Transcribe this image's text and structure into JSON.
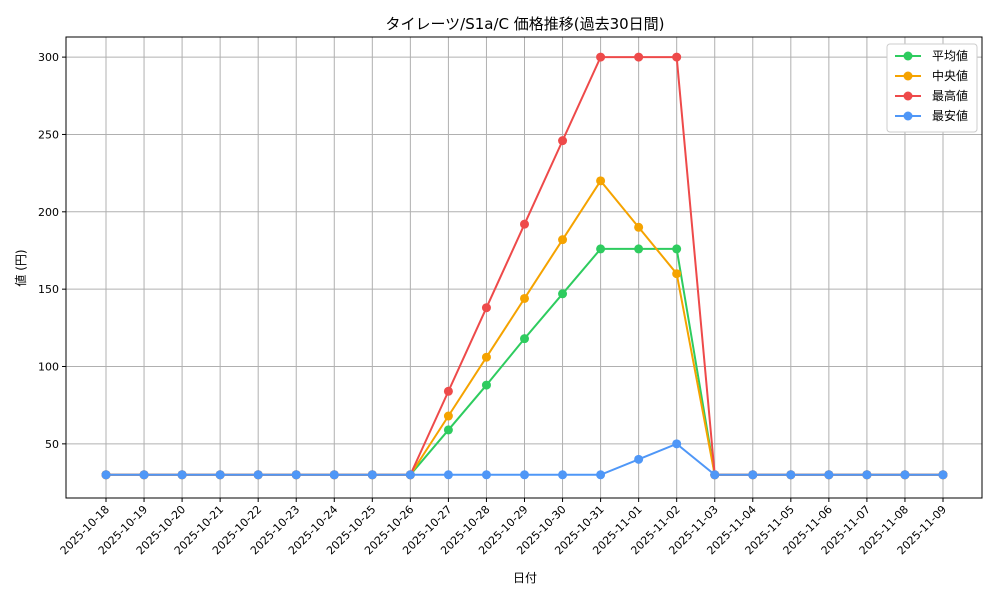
{
  "chart_data": {
    "type": "line",
    "title": "タイレーツ/S1a/C 価格推移(過去30日間)",
    "xlabel": "日付",
    "ylabel": "値 (円)",
    "ylim": [
      15,
      313
    ],
    "yticks": [
      50,
      100,
      150,
      200,
      250,
      300
    ],
    "grid": true,
    "legend_position": "top-right",
    "categories": [
      "2025-10-18",
      "2025-10-19",
      "2025-10-20",
      "2025-10-21",
      "2025-10-22",
      "2025-10-23",
      "2025-10-24",
      "2025-10-25",
      "2025-10-26",
      "2025-10-27",
      "2025-10-28",
      "2025-10-29",
      "2025-10-30",
      "2025-10-31",
      "2025-11-01",
      "2025-11-02",
      "2025-11-03",
      "2025-11-04",
      "2025-11-05",
      "2025-11-06",
      "2025-11-07",
      "2025-11-08",
      "2025-11-09"
    ],
    "series": [
      {
        "name": "平均値",
        "color": "#2ecc5f",
        "values": [
          30,
          30,
          30,
          30,
          30,
          30,
          30,
          30,
          30,
          59,
          88,
          118,
          147,
          176,
          176,
          176,
          30,
          30,
          30,
          30,
          30,
          30,
          30
        ]
      },
      {
        "name": "中央値",
        "color": "#f5a300",
        "values": [
          30,
          30,
          30,
          30,
          30,
          30,
          30,
          30,
          30,
          68,
          106,
          144,
          182,
          220,
          190,
          160,
          30,
          30,
          30,
          30,
          30,
          30,
          30
        ]
      },
      {
        "name": "最高値",
        "color": "#ee4a4a",
        "values": [
          30,
          30,
          30,
          30,
          30,
          30,
          30,
          30,
          30,
          84,
          138,
          192,
          246,
          300,
          300,
          300,
          30,
          30,
          30,
          30,
          30,
          30,
          30
        ]
      },
      {
        "name": "最安値",
        "color": "#4f97f7",
        "values": [
          30,
          30,
          30,
          30,
          30,
          30,
          30,
          30,
          30,
          30,
          30,
          30,
          30,
          30,
          40,
          50,
          30,
          30,
          30,
          30,
          30,
          30,
          30
        ]
      }
    ]
  }
}
